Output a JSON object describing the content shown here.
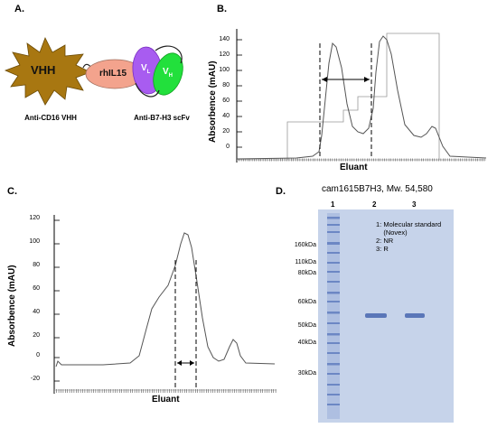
{
  "panelA": {
    "letter": "A.",
    "vhh": "VHH",
    "il15": "rhIL15",
    "vl": "V",
    "vl_sub": "L",
    "vh": "V",
    "vh_sub": "H",
    "caption_left": "Anti-CD16 VHH",
    "caption_right": "Anti-B7-H3 scFv",
    "colors": {
      "vhh": "#a87711",
      "il15": "#f3a38d",
      "vl": "#a85cf0",
      "vh": "#22e03c"
    }
  },
  "panelB": {
    "letter": "B.",
    "ylabel": "Absorbence (mAU)",
    "xlabel": "Eluant",
    "yticks": [
      "140",
      "120",
      "100",
      "80",
      "60",
      "40",
      "20",
      "0"
    ]
  },
  "panelC": {
    "letter": "C.",
    "ylabel": "Absorbence (mAU)",
    "xlabel": "Eluant",
    "yticks": [
      "120",
      "100",
      "80",
      "60",
      "40",
      "20",
      "0",
      "-20"
    ]
  },
  "panelD": {
    "letter": "D.",
    "title": "cam1615B7H3, Mw. 54,580",
    "lanes": [
      "1",
      "2",
      "3"
    ],
    "markers": [
      "160kDa",
      "110kDa",
      "80kDa",
      "60kDa",
      "50kDa",
      "40kDa",
      "30kDa"
    ],
    "legend": "1: Molecular standard\n    (Novex)\n2: NR\n3: R",
    "colors": {
      "gel": "#c6d3ea",
      "band": "#5a76b8"
    }
  }
}
